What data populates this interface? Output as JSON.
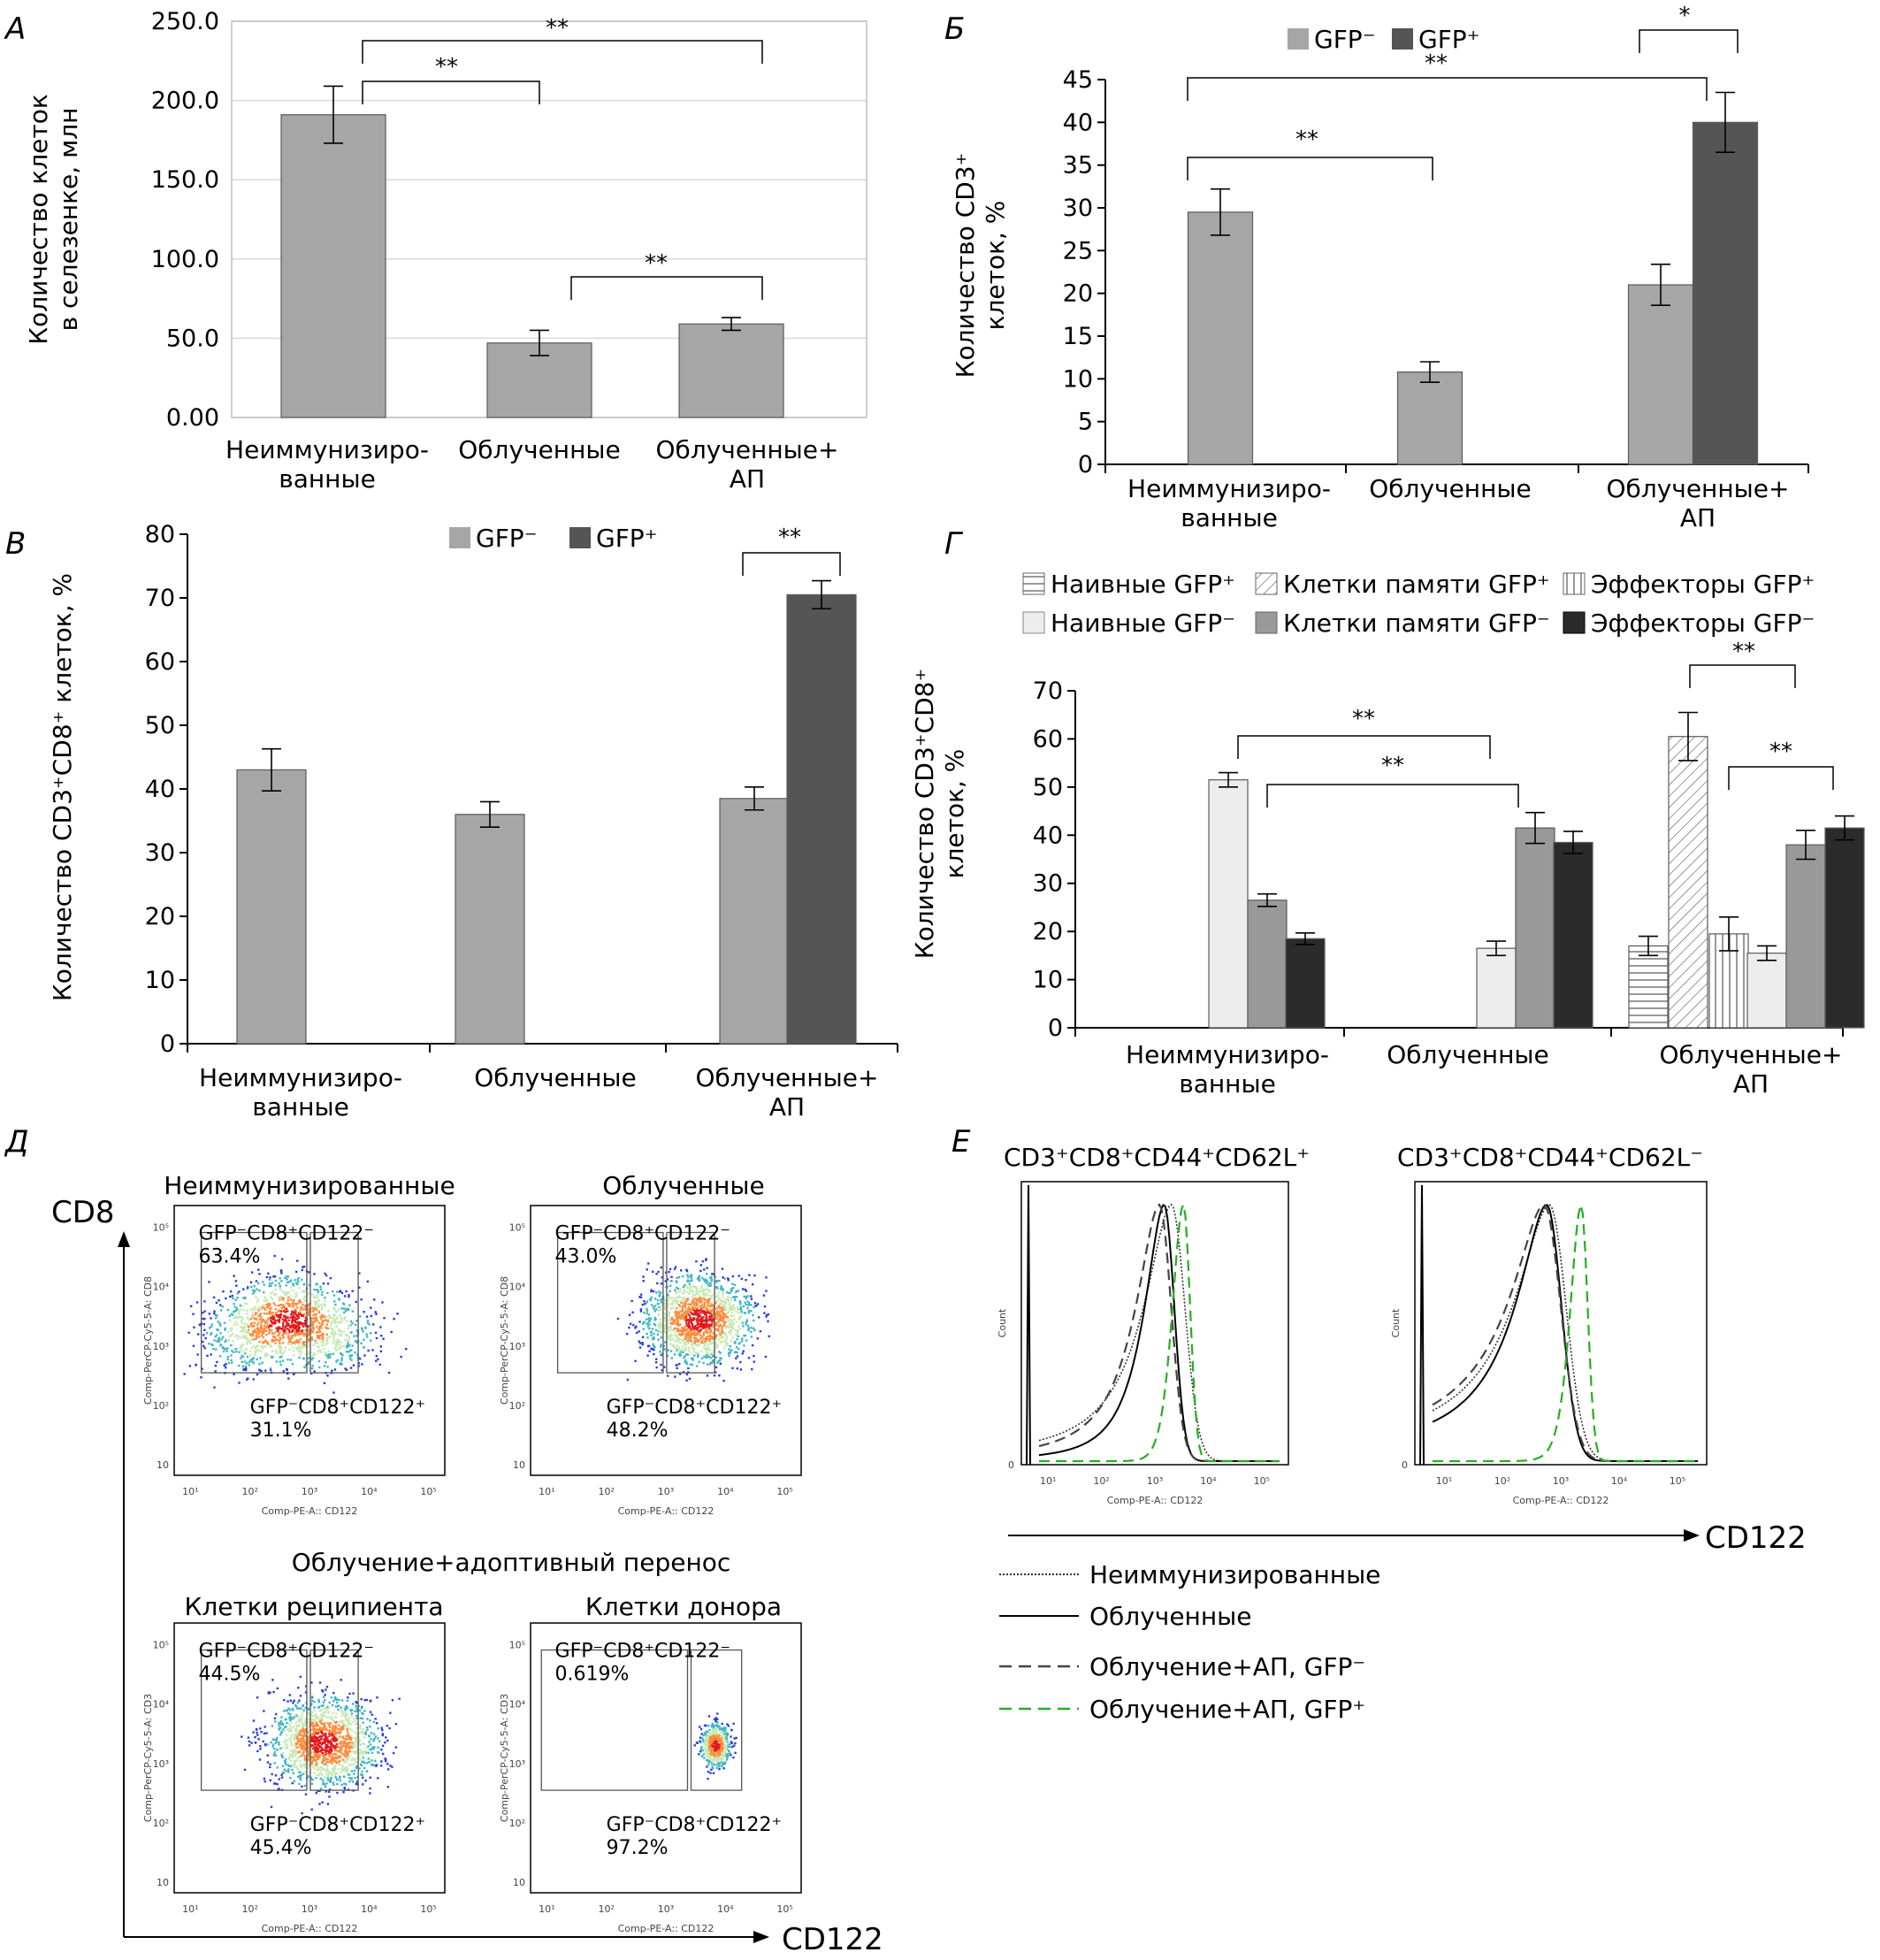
{
  "chart_data": [
    {
      "id": "A",
      "type": "bar",
      "panel_label": "А",
      "ylabel_lines": [
        "Количество клеток",
        "в селезенке, млн"
      ],
      "ylim": [
        0,
        250
      ],
      "yticks": [
        "0.00",
        "50.0",
        "100.0",
        "150.0",
        "200.0",
        "250.0"
      ],
      "categories": [
        [
          "Неиммунизиро-",
          "ванные"
        ],
        [
          "Облученные"
        ],
        [
          "Облученные+",
          "АП"
        ]
      ],
      "series": [
        {
          "values": [
            191,
            47,
            59
          ],
          "errors": [
            18,
            8,
            4
          ]
        }
      ],
      "significance": [
        "**",
        "**",
        "**"
      ],
      "colors": [
        "#a6a6a6"
      ],
      "grid": true
    },
    {
      "id": "B",
      "type": "bar",
      "panel_label": "Б",
      "ylabel_lines": [
        "Количество CD3⁺",
        "клеток, %"
      ],
      "ylim": [
        0,
        45
      ],
      "yticks": [
        "0",
        "5",
        "10",
        "15",
        "20",
        "25",
        "30",
        "35",
        "40",
        "45"
      ],
      "categories": [
        [
          "Неиммунизиро-",
          "ванные"
        ],
        [
          "Облученные"
        ],
        [
          "Облученные+",
          "АП"
        ]
      ],
      "legend": [
        "GFP⁻",
        "GFP⁺"
      ],
      "series": [
        {
          "values": [
            29.5,
            10.8,
            21
          ],
          "errors": [
            2.7,
            1.2,
            2.4
          ]
        },
        {
          "values": [
            null,
            null,
            40
          ],
          "errors": [
            null,
            null,
            3.5
          ]
        }
      ],
      "significance": [
        "**",
        "**",
        "*"
      ],
      "colors": [
        "#a6a6a6",
        "#555555"
      ],
      "grid": false
    },
    {
      "id": "V",
      "type": "bar",
      "panel_label": "В",
      "ylabel_lines": [
        "Количество CD3⁺CD8⁺ клеток, %"
      ],
      "ylim": [
        0,
        80
      ],
      "yticks": [
        "0",
        "10",
        "20",
        "30",
        "40",
        "50",
        "60",
        "70",
        "80"
      ],
      "categories": [
        [
          "Неиммунизиро-",
          "ванные"
        ],
        [
          "Облученные"
        ],
        [
          "Облученные+",
          "АП"
        ]
      ],
      "legend": [
        "GFP⁻",
        "GFP⁺"
      ],
      "series": [
        {
          "values": [
            43,
            36,
            38.5
          ],
          "errors": [
            3.3,
            2,
            1.8
          ]
        },
        {
          "values": [
            null,
            null,
            70.5
          ],
          "errors": [
            null,
            null,
            2.2
          ]
        }
      ],
      "significance": [
        "**"
      ],
      "colors": [
        "#a6a6a6",
        "#555555"
      ],
      "grid": false
    },
    {
      "id": "G",
      "type": "bar",
      "panel_label": "Г",
      "ylabel_lines": [
        "Количество CD3⁺CD8⁺",
        "клеток, %"
      ],
      "ylim": [
        0,
        70
      ],
      "yticks": [
        "0",
        "10",
        "20",
        "30",
        "40",
        "50",
        "60",
        "70"
      ],
      "categories": [
        [
          "Неиммунизиро-",
          "ванные"
        ],
        [
          "Облученные"
        ],
        [
          "Облученные+",
          "АП"
        ]
      ],
      "legend": [
        "Наивные GFP⁺",
        "Клетки памяти GFP⁺",
        "Эффекторы GFP⁺",
        "Наивные GFP⁻",
        "Клетки памяти GFP⁻",
        "Эффекторы GFP⁻"
      ],
      "series": [
        {
          "name": "Наивные GFP⁺",
          "values": [
            null,
            null,
            17
          ],
          "errors": [
            null,
            null,
            2
          ]
        },
        {
          "name": "Клетки памяти GFP⁺",
          "values": [
            null,
            null,
            60.5
          ],
          "errors": [
            null,
            null,
            5
          ]
        },
        {
          "name": "Эффекторы GFP⁺",
          "values": [
            null,
            null,
            19.5
          ],
          "errors": [
            null,
            null,
            3.5
          ]
        },
        {
          "name": "Наивные GFP⁻",
          "values": [
            51.5,
            16.5,
            15.5
          ],
          "errors": [
            1.5,
            1.5,
            1.5
          ]
        },
        {
          "name": "Клетки памяти GFP⁻",
          "values": [
            26.5,
            41.5,
            38
          ],
          "errors": [
            1.3,
            3.2,
            3
          ]
        },
        {
          "name": "Эффекторы GFP⁻",
          "values": [
            18.5,
            38.5,
            41.5
          ],
          "errors": [
            1.2,
            2.3,
            2.5
          ]
        }
      ],
      "significance": [
        "**",
        "**",
        "**",
        "**"
      ],
      "colors": [
        "#ffffff",
        "#ffffff",
        "#ffffff",
        "#ededed",
        "#999999",
        "#2b2b2b"
      ],
      "grid": false
    }
  ],
  "panel_d": {
    "label": "Д",
    "y_axis": "CD8",
    "x_axis": "CD122",
    "section_title": "Облучение+адоптивный перенос",
    "plots": [
      {
        "title": "Неиммунизированные",
        "gate_neg": "GFP⁻CD8⁺CD122⁻",
        "pct_neg": "63.4%",
        "gate_pos": "GFP⁻CD8⁺CD122⁺",
        "pct_pos": "31.1%",
        "yaxis": "Comp-PerCP-Cy5-5-A: CD8",
        "xaxis": "Comp-PE-A:: CD122"
      },
      {
        "title": "Облученные",
        "gate_neg": "GFP⁻CD8⁺CD122⁻",
        "pct_neg": "43.0%",
        "gate_pos": "GFP⁻CD8⁺CD122⁺",
        "pct_pos": "48.2%",
        "yaxis": "Comp-PerCP-Cy5-5-A: CD8",
        "xaxis": "Comp-PE-A:: CD122"
      },
      {
        "title": "Клетки реципиента",
        "gate_neg": "GFP⁻CD8⁺CD122⁻",
        "pct_neg": "44.5%",
        "gate_pos": "GFP⁻CD8⁺CD122⁺",
        "pct_pos": "45.4%",
        "yaxis": "Comp-PerCP-Cy5-5-A: CD3",
        "xaxis": "Comp-PE-A:: CD122"
      },
      {
        "title": "Клетки донора",
        "gate_neg": "GFP⁻CD8⁺CD122⁻",
        "pct_neg": "0.619%",
        "gate_pos": "GFP⁻CD8⁺CD122⁺",
        "pct_pos": "97.2%",
        "yaxis": "Comp-PerCP-Cy5-5-A: CD3",
        "xaxis": "Comp-PE-A:: CD122"
      }
    ],
    "axis_ticks": [
      "10¹",
      "10²",
      "10³",
      "10⁴",
      "10⁵"
    ],
    "y_ticks": [
      "10",
      "10²",
      "10³",
      "10⁴",
      "10⁵"
    ]
  },
  "panel_e": {
    "label": "Е",
    "x_axis": "CD122",
    "titles": [
      "CD3⁺CD8⁺CD44⁺CD62L⁺",
      "CD3⁺CD8⁺CD44⁺CD62L⁻"
    ],
    "ylabel": "Count",
    "xaxis": "Comp-PE-A:: CD122",
    "legend": [
      "Неиммунизированные",
      "Облученные",
      "Облучение+АП, GFP⁻",
      "Облучение+АП, GFP⁺"
    ],
    "legend_colors": [
      "#333333",
      "#000000",
      "#444444",
      "#22b022"
    ]
  }
}
